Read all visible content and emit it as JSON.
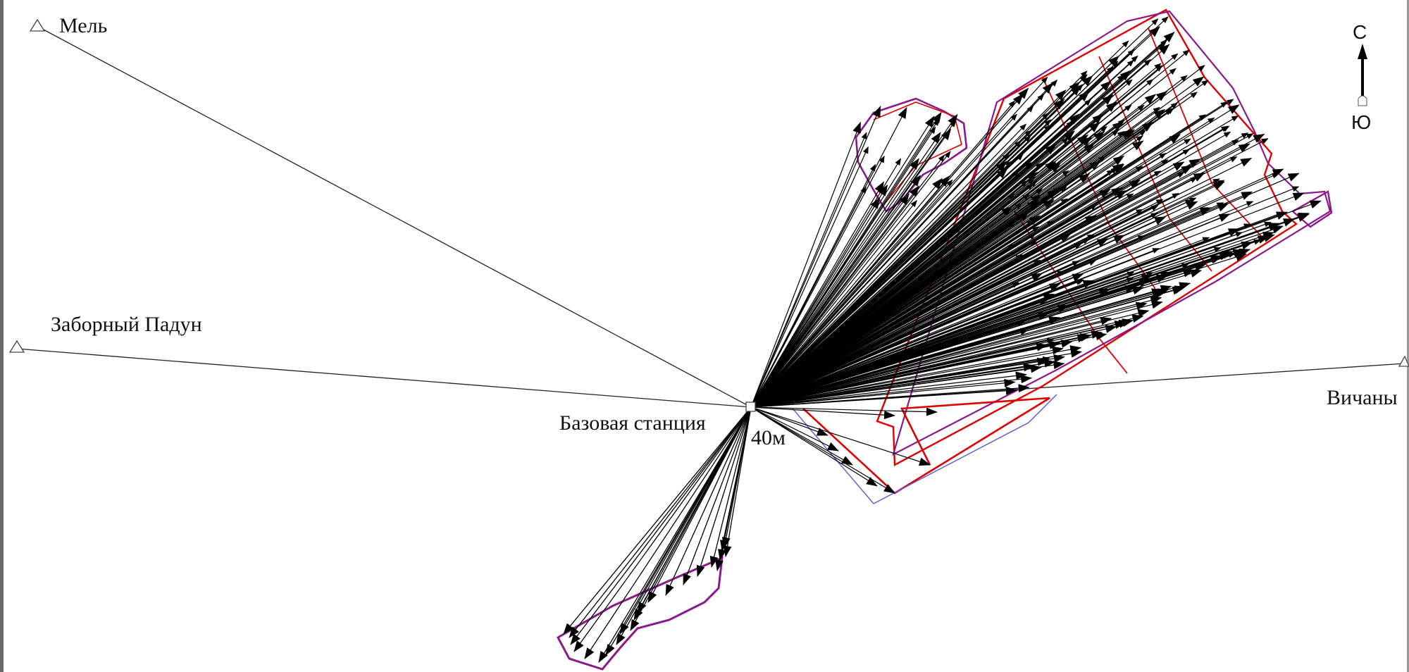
{
  "map": {
    "stations": [
      {
        "id": "mel",
        "label": "Мель"
      },
      {
        "id": "zaborny",
        "label": "Заборный Падун"
      },
      {
        "id": "vichany",
        "label": "Вичаны"
      },
      {
        "id": "base",
        "label": "Базовая станция"
      }
    ],
    "base_height_label": "40м",
    "compass": {
      "north": "С",
      "south": "Ю"
    },
    "colors": {
      "vectors": "#000000",
      "sight_lines": "#222222",
      "boundary_red": "#e00000",
      "boundary_purple": "#8a1a8a",
      "boundary_blue": "#5a5ae0"
    }
  }
}
